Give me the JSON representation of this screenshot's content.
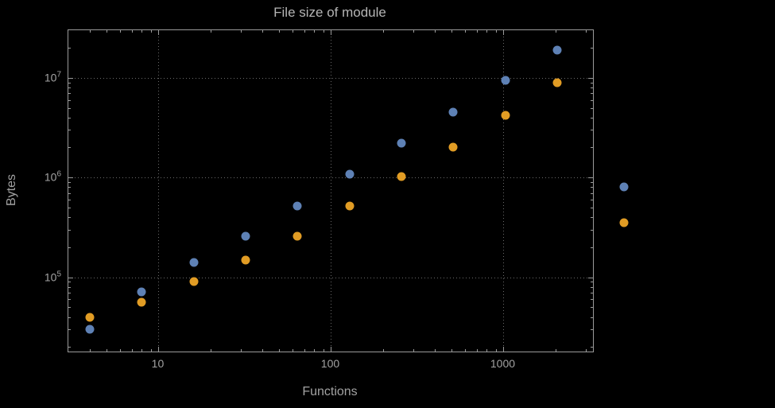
{
  "figure": {
    "background": "#000000"
  },
  "chart_data": {
    "type": "scatter",
    "title": "File size of module",
    "xlabel": "Functions",
    "ylabel": "Bytes",
    "x_scale": "log",
    "y_scale": "log",
    "xlim": [
      3,
      3300
    ],
    "ylim": [
      18000,
      30000000
    ],
    "grid": "dotted lines at decades",
    "legend": "none",
    "plot_range_clipping": false,
    "colors": {
      "background": "#000000",
      "frame": "#9a9a9a",
      "grid": "#6a6a6a",
      "text": "#a2a2a2",
      "title": "#b5b5b5",
      "series_blue": "#5e81b5",
      "series_orange": "#e19c24"
    },
    "x_ticks": [
      {
        "value": 10,
        "label": "10"
      },
      {
        "value": 100,
        "label": "100"
      },
      {
        "value": 1000,
        "label": "1000"
      }
    ],
    "y_ticks": [
      {
        "value": 100000,
        "base": "10",
        "exponent": "5"
      },
      {
        "value": 1000000,
        "base": "10",
        "exponent": "6"
      },
      {
        "value": 10000000,
        "base": "10",
        "exponent": "7"
      }
    ],
    "series": [
      {
        "name": "blue",
        "color": "#5e81b5",
        "points": [
          [
            4,
            30000
          ],
          [
            8,
            72000
          ],
          [
            16,
            140000
          ],
          [
            32,
            260000
          ],
          [
            64,
            520000
          ],
          [
            128,
            1080000
          ],
          [
            256,
            2200000
          ],
          [
            512,
            4500000
          ],
          [
            1024,
            9500000
          ],
          [
            2048,
            19000000
          ],
          [
            5000,
            800000
          ]
        ]
      },
      {
        "name": "orange",
        "color": "#e19c24",
        "points": [
          [
            4,
            40000
          ],
          [
            8,
            56000
          ],
          [
            16,
            91000
          ],
          [
            32,
            150000
          ],
          [
            64,
            260000
          ],
          [
            128,
            520000
          ],
          [
            256,
            1020000
          ],
          [
            512,
            2000000
          ],
          [
            1024,
            4200000
          ],
          [
            2048,
            9000000
          ],
          [
            5000,
            350000
          ]
        ]
      }
    ]
  }
}
